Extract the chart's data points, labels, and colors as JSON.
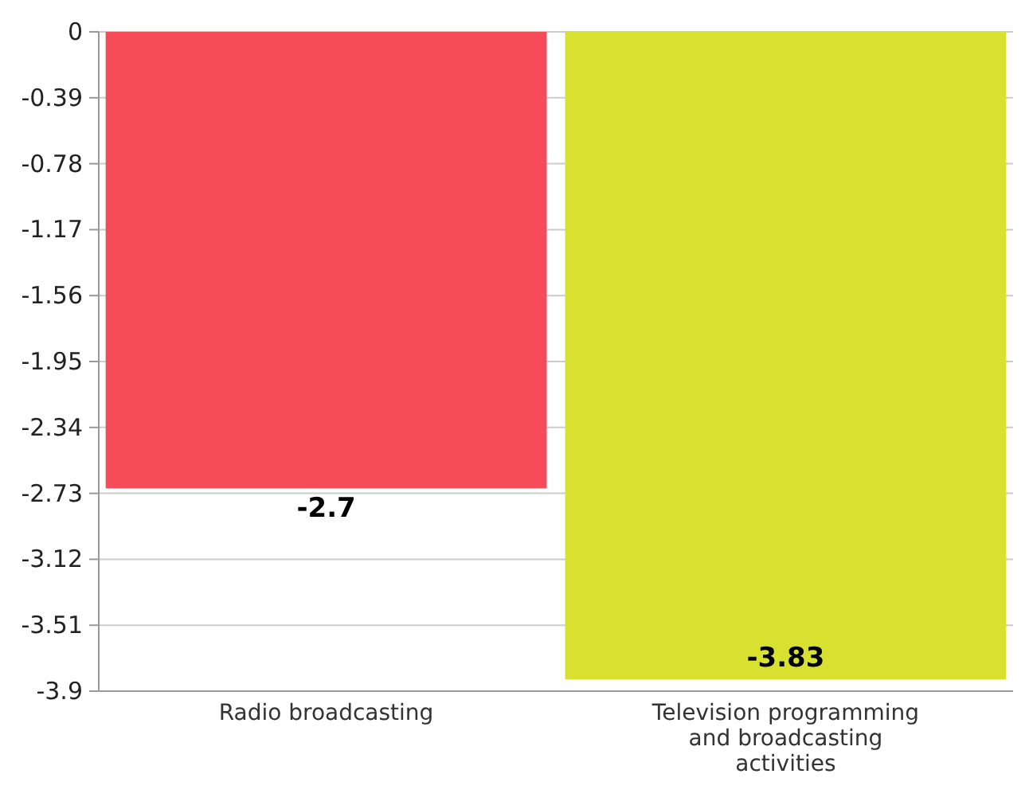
{
  "chart_data": {
    "type": "bar",
    "categories": [
      "Radio broadcasting",
      "Television programming and broadcasting activities"
    ],
    "values": [
      -2.7,
      -3.83
    ],
    "colors": [
      "#f64c5a",
      "#d8e030"
    ],
    "ylim": [
      -3.9,
      0
    ],
    "yticks": [
      0,
      -0.39,
      -0.78,
      -1.17,
      -1.56,
      -1.95,
      -2.34,
      -2.73,
      -3.12,
      -3.51,
      -3.9
    ],
    "grid": "y",
    "data_labels": true
  }
}
